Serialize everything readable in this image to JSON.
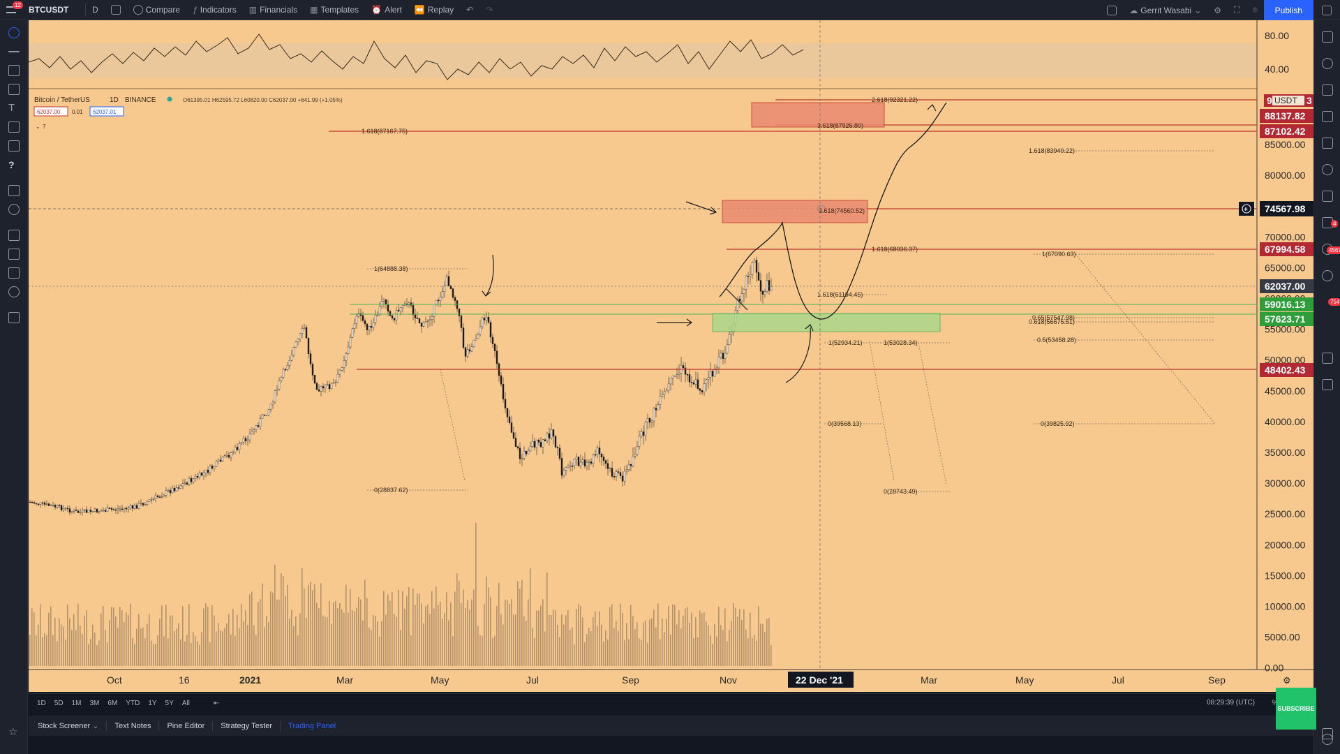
{
  "toolbar": {
    "symbol": "BTCUSDT",
    "interval": "D",
    "compare": "Compare",
    "indicators": "Indicators",
    "financials": "Financials",
    "templates": "Templates",
    "alert": "Alert",
    "replay": "Replay",
    "user": "Gerrit Wasabi",
    "publish": "Publish",
    "menu_badge": "12"
  },
  "legend": {
    "title": "Bitcoin / TetherUS",
    "interval": "1D",
    "exchange": "BINANCE",
    "ohlc": "O61395.01 H62595.72 L60820.00 C62037.00 +641.99 (+1.05%)",
    "bid": "62037.00",
    "spread": "0.01",
    "ask": "62037.01",
    "collapse": "7"
  },
  "oscillator": {
    "ticks": [
      "80.00",
      "40.00"
    ]
  },
  "price_axis": {
    "ticks": [
      "85000.00",
      "80000.00",
      "75000.00",
      "70000.00",
      "65000.00",
      "60000.00",
      "55000.00",
      "50000.00",
      "45000.00",
      "40000.00",
      "35000.00",
      "30000.00",
      "25000.00",
      "20000.00",
      "15000.00",
      "10000.00",
      "5000.00",
      "0.00"
    ],
    "currency": "USDT",
    "labels": [
      {
        "text": "9",
        "suffix": "3",
        "color": "#b22833"
      },
      {
        "text": "88137.82",
        "color": "#b22833"
      },
      {
        "text": "87102.42",
        "color": "#b22833"
      },
      {
        "text": "74567.98",
        "color": "#131722"
      },
      {
        "text": "67994.58",
        "color": "#b22833"
      },
      {
        "text": "62037.00",
        "color": "#363a45"
      },
      {
        "text": "59016.13",
        "color": "#2e9e3a"
      },
      {
        "text": "57623.71",
        "color": "#2e9e3a"
      },
      {
        "text": "48402.43",
        "color": "#b22833"
      }
    ]
  },
  "time_axis": {
    "ticks": [
      "Oct",
      "16",
      "2021",
      "Mar",
      "May",
      "Jul",
      "Sep",
      "Nov",
      "Mar",
      "May",
      "Jul",
      "Sep"
    ],
    "cursor_label": "22 Dec '21"
  },
  "fib_labels": [
    "2.618(92321.22)",
    "3.618(87926.80)",
    "1.618(87167.75)",
    "1.618(83940.22)",
    "3.618(74560.52)",
    "1.618(68036.37)",
    "1(67090.63)",
    "1(64888.38)",
    "1.618(61194.45)",
    "0.65(57547.98)",
    "0.618(56675.51)",
    "1(52934.21)",
    "1(53028.34)",
    "0.5(53458.28)",
    "0(39568.13)",
    "0(39825.92)",
    "0(28837.62)",
    "0(28743.49)"
  ],
  "range_bar": {
    "ranges": [
      "1D",
      "5D",
      "1M",
      "3M",
      "6M",
      "YTD",
      "1Y",
      "5Y",
      "All"
    ],
    "clock": "08:29:39 (UTC)",
    "percent": "%"
  },
  "panel_bar": {
    "tabs": [
      "Stock Screener",
      "Text Notes",
      "Pine Editor",
      "Strategy Tester",
      "Trading Panel"
    ]
  },
  "overlay": {
    "subscribe": "SUBSCRIBE"
  },
  "sidebar_badges": [
    "4",
    "4567",
    "754"
  ],
  "colors": {
    "chart_bg": "#f8c98f",
    "red_line": "#c0392b",
    "green_zone": "#a8d98a",
    "salmon_box": "#e98a70"
  }
}
